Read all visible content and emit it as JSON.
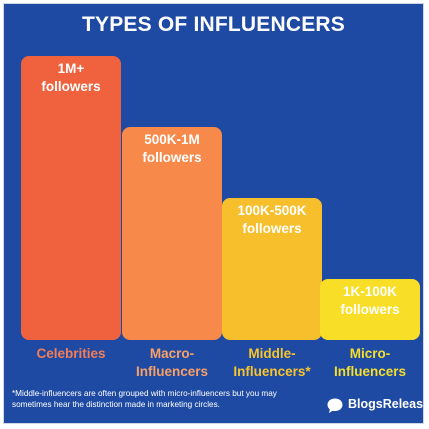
{
  "title": "TYPES OF INFLUENCERS",
  "chart_data": {
    "type": "bar",
    "title": "TYPES OF INFLUENCERS",
    "categories": [
      "Celebrities",
      "Macro-\nInfluencers",
      "Middle-\nInfluencers*",
      "Micro-\nInfluencers"
    ],
    "values": [
      4,
      3,
      2,
      1
    ],
    "bar_labels": [
      "1M+\nfollowers",
      "500K-1M\nfollowers",
      "100K-500K\nfollowers",
      "1K-100K\nfollowers"
    ],
    "colors": [
      "#f0623e",
      "#f7894a",
      "#f7bf2c",
      "#f8de26"
    ],
    "category_colors": [
      "#f47d55",
      "#f8a066",
      "#f7c52b",
      "#f6df2a"
    ],
    "ylim": [
      0,
      4
    ],
    "grid": false,
    "legend": "none"
  },
  "footnote": "*Middle-influencers are often grouped with micro-influencers but you may sometimes hear the distinction made in marketing circles.",
  "brand": {
    "name": "BlogsRelease",
    "icon": "speech-bubble-icon"
  }
}
